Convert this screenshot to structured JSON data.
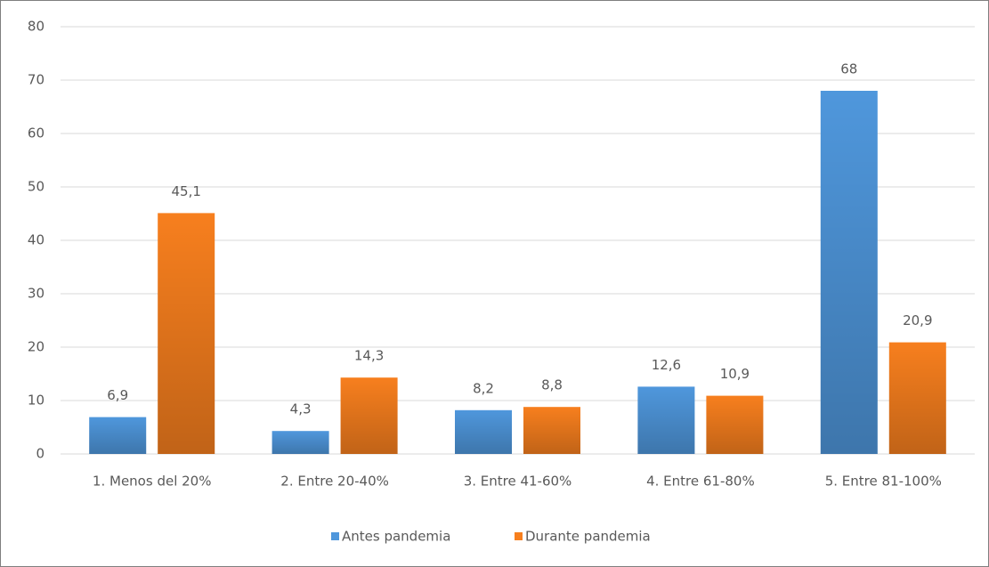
{
  "chart_data": {
    "type": "bar",
    "categories": [
      "1. Menos del 20%",
      "2. Entre 20-40%",
      "3. Entre 41-60%",
      "4. Entre 61-80%",
      "5. Entre 81-100%"
    ],
    "series": [
      {
        "name": "Antes pandemia",
        "color": "#4f97dc",
        "values": [
          6.9,
          4.3,
          8.2,
          12.6,
          68
        ],
        "value_labels": [
          "6,9",
          "4,3",
          "8,2",
          "12,6",
          "68"
        ]
      },
      {
        "name": "Durante pandemia",
        "color": "#f77f1e",
        "values": [
          45.1,
          14.3,
          8.8,
          10.9,
          20.9
        ],
        "value_labels": [
          "45,1",
          "14,3",
          "8,8",
          "10,9",
          "20,9"
        ]
      }
    ],
    "ylim": [
      0,
      80
    ],
    "yticks": [
      0,
      10,
      20,
      30,
      40,
      50,
      60,
      70,
      80
    ],
    "grid": true,
    "legend": "bottom"
  }
}
